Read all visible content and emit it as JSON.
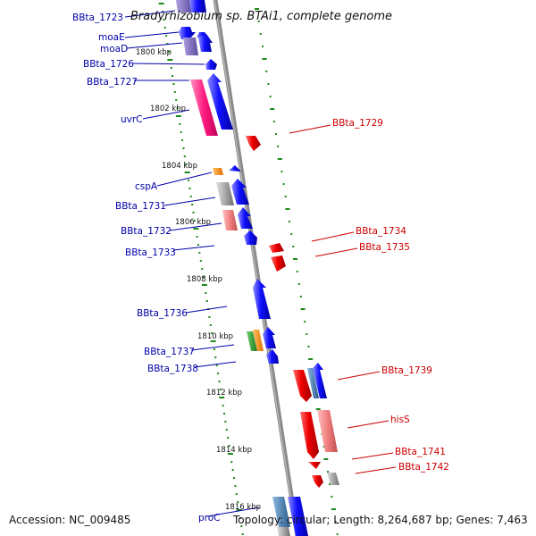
{
  "title": "Bradyrhizobium sp. BTAi1, complete genome",
  "accession": "Accession: NC_009485",
  "topology": "Topology: circular; Length: 8,264,687 bp; Genes: 7,463",
  "scale_labels": [
    "1800 kbp",
    "1802 kbp",
    "1804 kbp",
    "1806 kbp",
    "1808 kbp",
    "1810 kbp",
    "1812 kbp",
    "1814 kbp",
    "1816 kbp"
  ],
  "left_labels": [
    "BBta_1723",
    "moaE",
    "moaD",
    "BBta_1726",
    "BBta_1727",
    "uvrC",
    "cspA",
    "BBta_1731",
    "BBta_1732",
    "BBta_1733",
    "BBta_1736",
    "BBta_1737",
    "BBta_1738",
    "proC"
  ],
  "right_labels": [
    "BBta_1729",
    "BBta_1734",
    "BBta_1735",
    "BBta_1739",
    "hisS",
    "BBta_1741",
    "BBta_1742"
  ],
  "colors": {
    "forward": "#1a1aff",
    "reverse": "#ee0000",
    "pink": "#ff2a8a",
    "lightred": "#f08080",
    "gray": "#a8a8a8",
    "orange": "#ff8c00",
    "green": "#2ca02c",
    "steel": "#4682b4",
    "label_blue": "#0000a8",
    "label_red": "#cc0000",
    "tick": "#1a8a1a",
    "backbone": "#888888"
  }
}
